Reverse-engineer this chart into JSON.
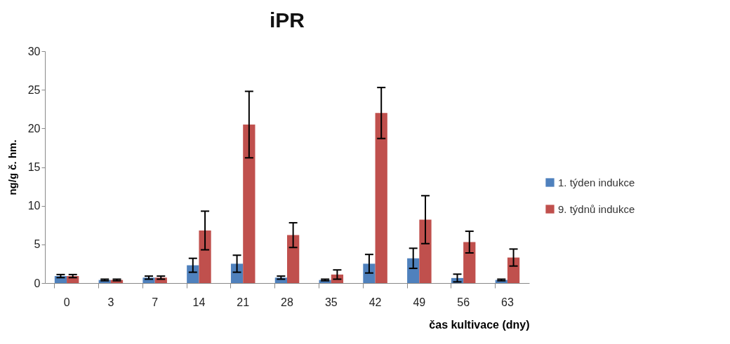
{
  "chart_data": {
    "type": "bar",
    "title": "iPR",
    "xlabel": "čas kultivace (dny)",
    "ylabel": "ng/g č. hm.",
    "categories": [
      "0",
      "3",
      "7",
      "14",
      "21",
      "28",
      "35",
      "42",
      "49",
      "56",
      "63"
    ],
    "series": [
      {
        "name": "1. týden indukce",
        "color": "#4f81bd",
        "values": [
          0.9,
          0.4,
          0.7,
          2.3,
          2.5,
          0.7,
          0.4,
          2.5,
          3.2,
          0.65,
          0.4
        ],
        "errors": [
          0.2,
          0.1,
          0.2,
          0.9,
          1.1,
          0.2,
          0.1,
          1.2,
          1.3,
          0.5,
          0.1
        ]
      },
      {
        "name": "9. týdnů indukce",
        "color": "#c0504d",
        "values": [
          0.9,
          0.4,
          0.7,
          6.8,
          20.5,
          6.2,
          1.1,
          22,
          8.2,
          5.3,
          3.3
        ],
        "errors": [
          0.2,
          0.1,
          0.2,
          2.5,
          4.3,
          1.6,
          0.6,
          3.3,
          3.1,
          1.4,
          1.1
        ]
      }
    ],
    "ylim": [
      0,
      30
    ],
    "yticks": [
      0,
      5,
      10,
      15,
      20,
      25,
      30
    ],
    "grid": false,
    "legend": "right"
  }
}
